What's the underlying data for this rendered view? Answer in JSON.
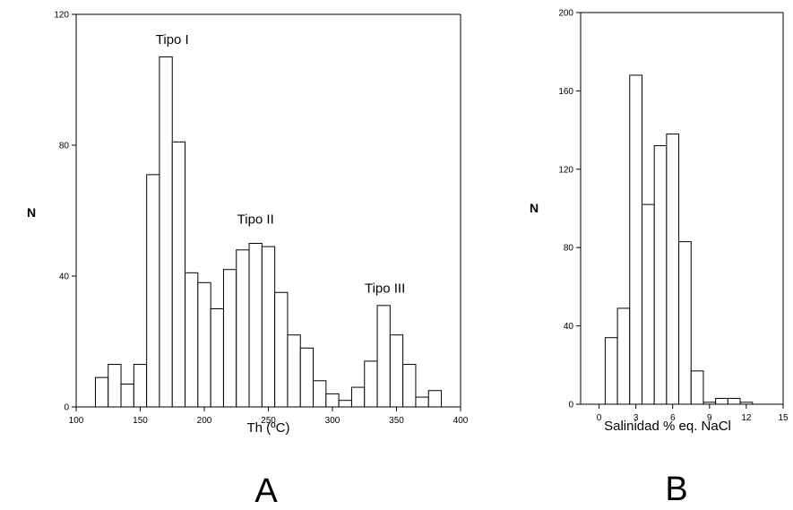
{
  "chart_data": [
    {
      "type": "bar",
      "panel_label": "A",
      "xlabel": "Th (ºC)",
      "ylabel": "N",
      "xlim": [
        100,
        400
      ],
      "ylim": [
        0,
        120
      ],
      "xticks": [
        100,
        150,
        200,
        250,
        300,
        350,
        400
      ],
      "yticks": [
        0,
        40,
        80,
        120
      ],
      "bin_width": 10,
      "bins": [
        {
          "x0": 115,
          "value": 9
        },
        {
          "x0": 125,
          "value": 13
        },
        {
          "x0": 135,
          "value": 7
        },
        {
          "x0": 145,
          "value": 13
        },
        {
          "x0": 155,
          "value": 71
        },
        {
          "x0": 165,
          "value": 107
        },
        {
          "x0": 175,
          "value": 81
        },
        {
          "x0": 185,
          "value": 41
        },
        {
          "x0": 195,
          "value": 38
        },
        {
          "x0": 205,
          "value": 30
        },
        {
          "x0": 215,
          "value": 42
        },
        {
          "x0": 225,
          "value": 48
        },
        {
          "x0": 235,
          "value": 50
        },
        {
          "x0": 245,
          "value": 49
        },
        {
          "x0": 255,
          "value": 35
        },
        {
          "x0": 265,
          "value": 22
        },
        {
          "x0": 275,
          "value": 18
        },
        {
          "x0": 285,
          "value": 8
        },
        {
          "x0": 295,
          "value": 4
        },
        {
          "x0": 305,
          "value": 2
        },
        {
          "x0": 315,
          "value": 6
        },
        {
          "x0": 325,
          "value": 14
        },
        {
          "x0": 335,
          "value": 31
        },
        {
          "x0": 345,
          "value": 22
        },
        {
          "x0": 355,
          "value": 13
        },
        {
          "x0": 365,
          "value": 3
        },
        {
          "x0": 375,
          "value": 5
        }
      ],
      "annotations": [
        {
          "text": "Tipo I",
          "x": 175,
          "y": 111
        },
        {
          "text": "Tipo II",
          "x": 240,
          "y": 56
        },
        {
          "text": "Tipo III",
          "x": 341,
          "y": 35
        }
      ]
    },
    {
      "type": "bar",
      "panel_label": "B",
      "xlabel": "Salinidad % eq. NaCl",
      "ylabel": "N",
      "xlim": [
        -1.5,
        15
      ],
      "ylim": [
        0,
        200
      ],
      "xticks": [
        0,
        3,
        6,
        9,
        12,
        15
      ],
      "xtick_labels": [
        "0",
        "3",
        "6",
        "9",
        "12",
        "15"
      ],
      "yticks": [
        0,
        40,
        80,
        120,
        160,
        200
      ],
      "bin_width": 1,
      "bins": [
        {
          "x0": 0.5,
          "value": 34
        },
        {
          "x0": 1.5,
          "value": 49
        },
        {
          "x0": 2.5,
          "value": 168
        },
        {
          "x0": 3.5,
          "value": 102
        },
        {
          "x0": 4.5,
          "value": 132
        },
        {
          "x0": 5.5,
          "value": 138
        },
        {
          "x0": 6.5,
          "value": 83
        },
        {
          "x0": 7.5,
          "value": 17
        },
        {
          "x0": 8.5,
          "value": 1
        },
        {
          "x0": 9.5,
          "value": 3
        },
        {
          "x0": 10.5,
          "value": 3
        },
        {
          "x0": 11.5,
          "value": 1
        }
      ]
    }
  ]
}
